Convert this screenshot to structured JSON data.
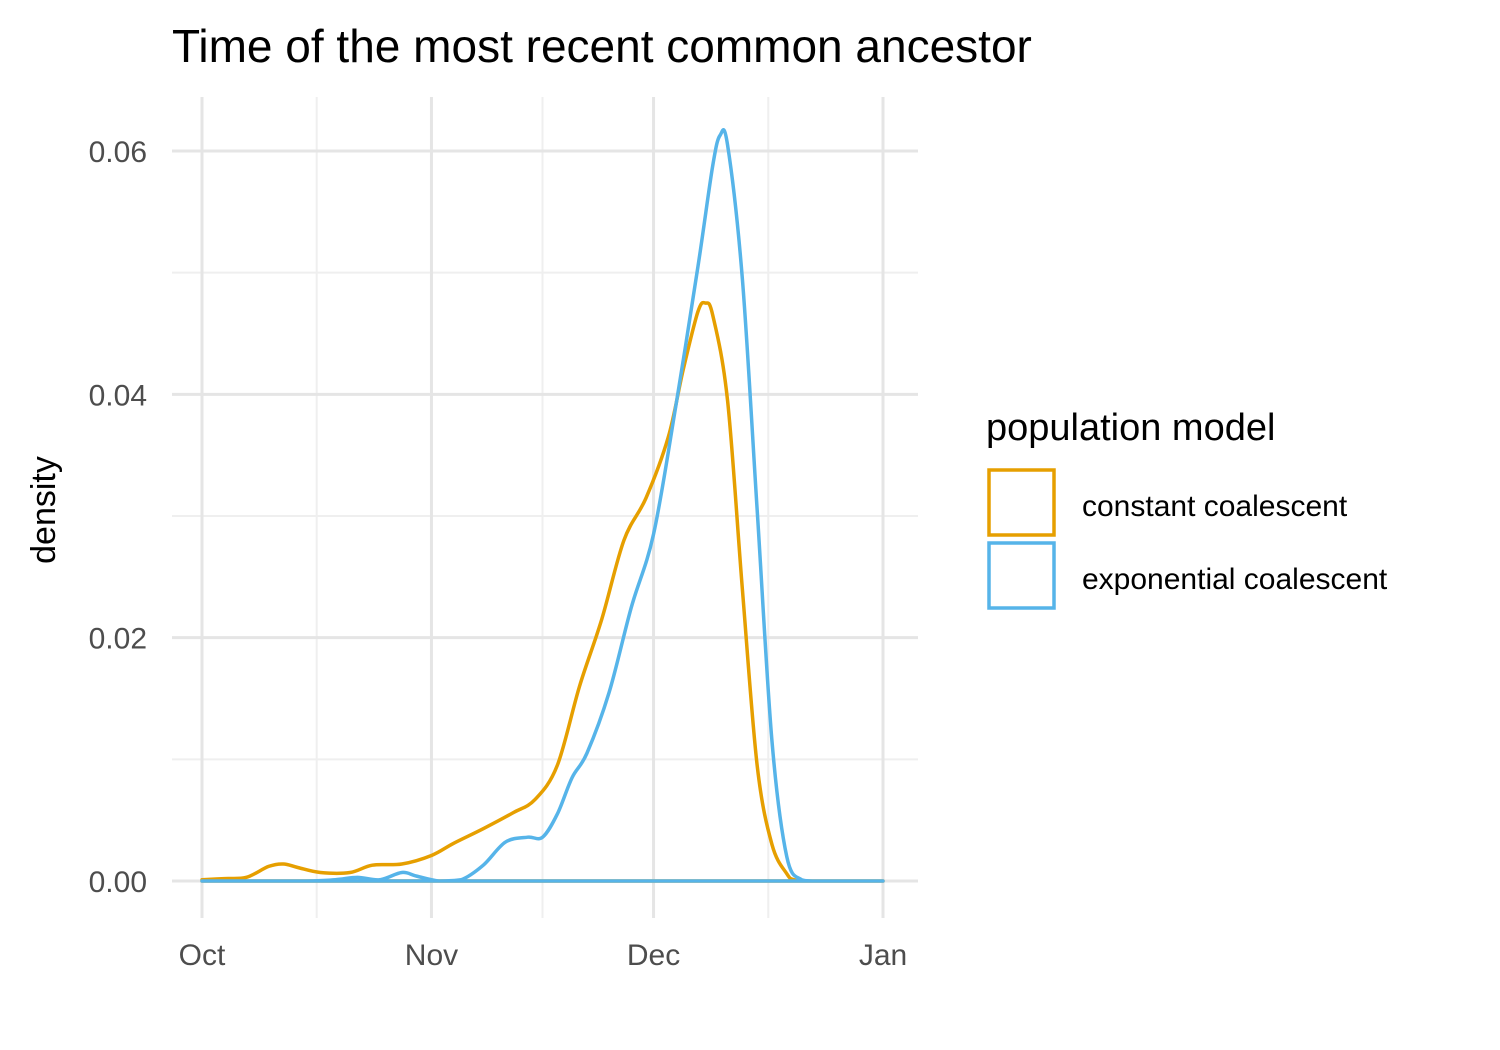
{
  "chart_data": {
    "type": "line",
    "title": "Time of the most recent common ancestor",
    "xlabel": "",
    "ylabel": "density",
    "x_ticks": [
      "Oct",
      "Nov",
      "Dec",
      "Jan"
    ],
    "x_tick_dates": [
      "Oct 1",
      "Nov 1",
      "Dec 1",
      "Jan 1"
    ],
    "xlim": [
      "Oct 1",
      "Jan 1"
    ],
    "y_ticks": [
      "0.00",
      "0.02",
      "0.04",
      "0.06"
    ],
    "ylim": [
      -0.003,
      0.0645
    ],
    "grid": true,
    "legend": {
      "title": "population model",
      "placement": "right"
    },
    "series": [
      {
        "name": "constant coalescent",
        "color": "#E69F00",
        "points": [
          [
            "Oct 1",
            0.0001
          ],
          [
            "Oct 4",
            0.0002
          ],
          [
            "Oct 7",
            0.0003
          ],
          [
            "Oct 10",
            0.0012
          ],
          [
            "Oct 12",
            0.0014
          ],
          [
            "Oct 14",
            0.0011
          ],
          [
            "Oct 17",
            0.0007
          ],
          [
            "Oct 21",
            0.0007
          ],
          [
            "Oct 24",
            0.0013
          ],
          [
            "Oct 28",
            0.0014
          ],
          [
            "Nov 1",
            0.0021
          ],
          [
            "Nov 4",
            0.0031
          ],
          [
            "Nov 8",
            0.0043
          ],
          [
            "Nov 12",
            0.0056
          ],
          [
            "Nov 15",
            0.0067
          ],
          [
            "Nov 18",
            0.0095
          ],
          [
            "Nov 21",
            0.016
          ],
          [
            "Nov 24",
            0.0215
          ],
          [
            "Nov 27",
            0.028
          ],
          [
            "Nov 30",
            0.0315
          ],
          [
            "Dec 3",
            0.0365
          ],
          [
            "Dec 5",
            0.042
          ],
          [
            "Dec 7",
            0.0468
          ],
          [
            "Dec 8",
            0.0475
          ],
          [
            "Dec 9",
            0.0465
          ],
          [
            "Dec 11",
            0.0395
          ],
          [
            "Dec 13",
            0.024
          ],
          [
            "Dec 15",
            0.0095
          ],
          [
            "Dec 17",
            0.003
          ],
          [
            "Dec 19",
            0.0006
          ],
          [
            "Dec 20",
            0.0001
          ],
          [
            "Dec 22",
            0.0
          ],
          [
            "Jan 1",
            0.0
          ]
        ]
      },
      {
        "name": "exponential coalescent",
        "color": "#56B4E9",
        "points": [
          [
            "Oct 1",
            0.0
          ],
          [
            "Oct 15",
            0.0
          ],
          [
            "Oct 19",
            0.0001
          ],
          [
            "Oct 22",
            0.0003
          ],
          [
            "Oct 25",
            0.0001
          ],
          [
            "Oct 28",
            0.0007
          ],
          [
            "Oct 30",
            0.0004
          ],
          [
            "Nov 2",
            0.0
          ],
          [
            "Nov 5",
            0.0001
          ],
          [
            "Nov 8",
            0.0013
          ],
          [
            "Nov 11",
            0.0032
          ],
          [
            "Nov 14",
            0.0036
          ],
          [
            "Nov 16",
            0.0036
          ],
          [
            "Nov 18",
            0.0055
          ],
          [
            "Nov 20",
            0.0085
          ],
          [
            "Nov 22",
            0.0105
          ],
          [
            "Nov 25",
            0.0155
          ],
          [
            "Nov 28",
            0.0225
          ],
          [
            "Dec 1",
            0.0285
          ],
          [
            "Dec 4",
            0.039
          ],
          [
            "Dec 7",
            0.0505
          ],
          [
            "Dec 9",
            0.0588
          ],
          [
            "Dec 10",
            0.0613
          ],
          [
            "Dec 11",
            0.0605
          ],
          [
            "Dec 13",
            0.0495
          ],
          [
            "Dec 15",
            0.0305
          ],
          [
            "Dec 17",
            0.0115
          ],
          [
            "Dec 19",
            0.002
          ],
          [
            "Dec 21",
            0.0001
          ],
          [
            "Dec 23",
            0.0
          ],
          [
            "Jan 1",
            0.0
          ]
        ]
      }
    ]
  }
}
